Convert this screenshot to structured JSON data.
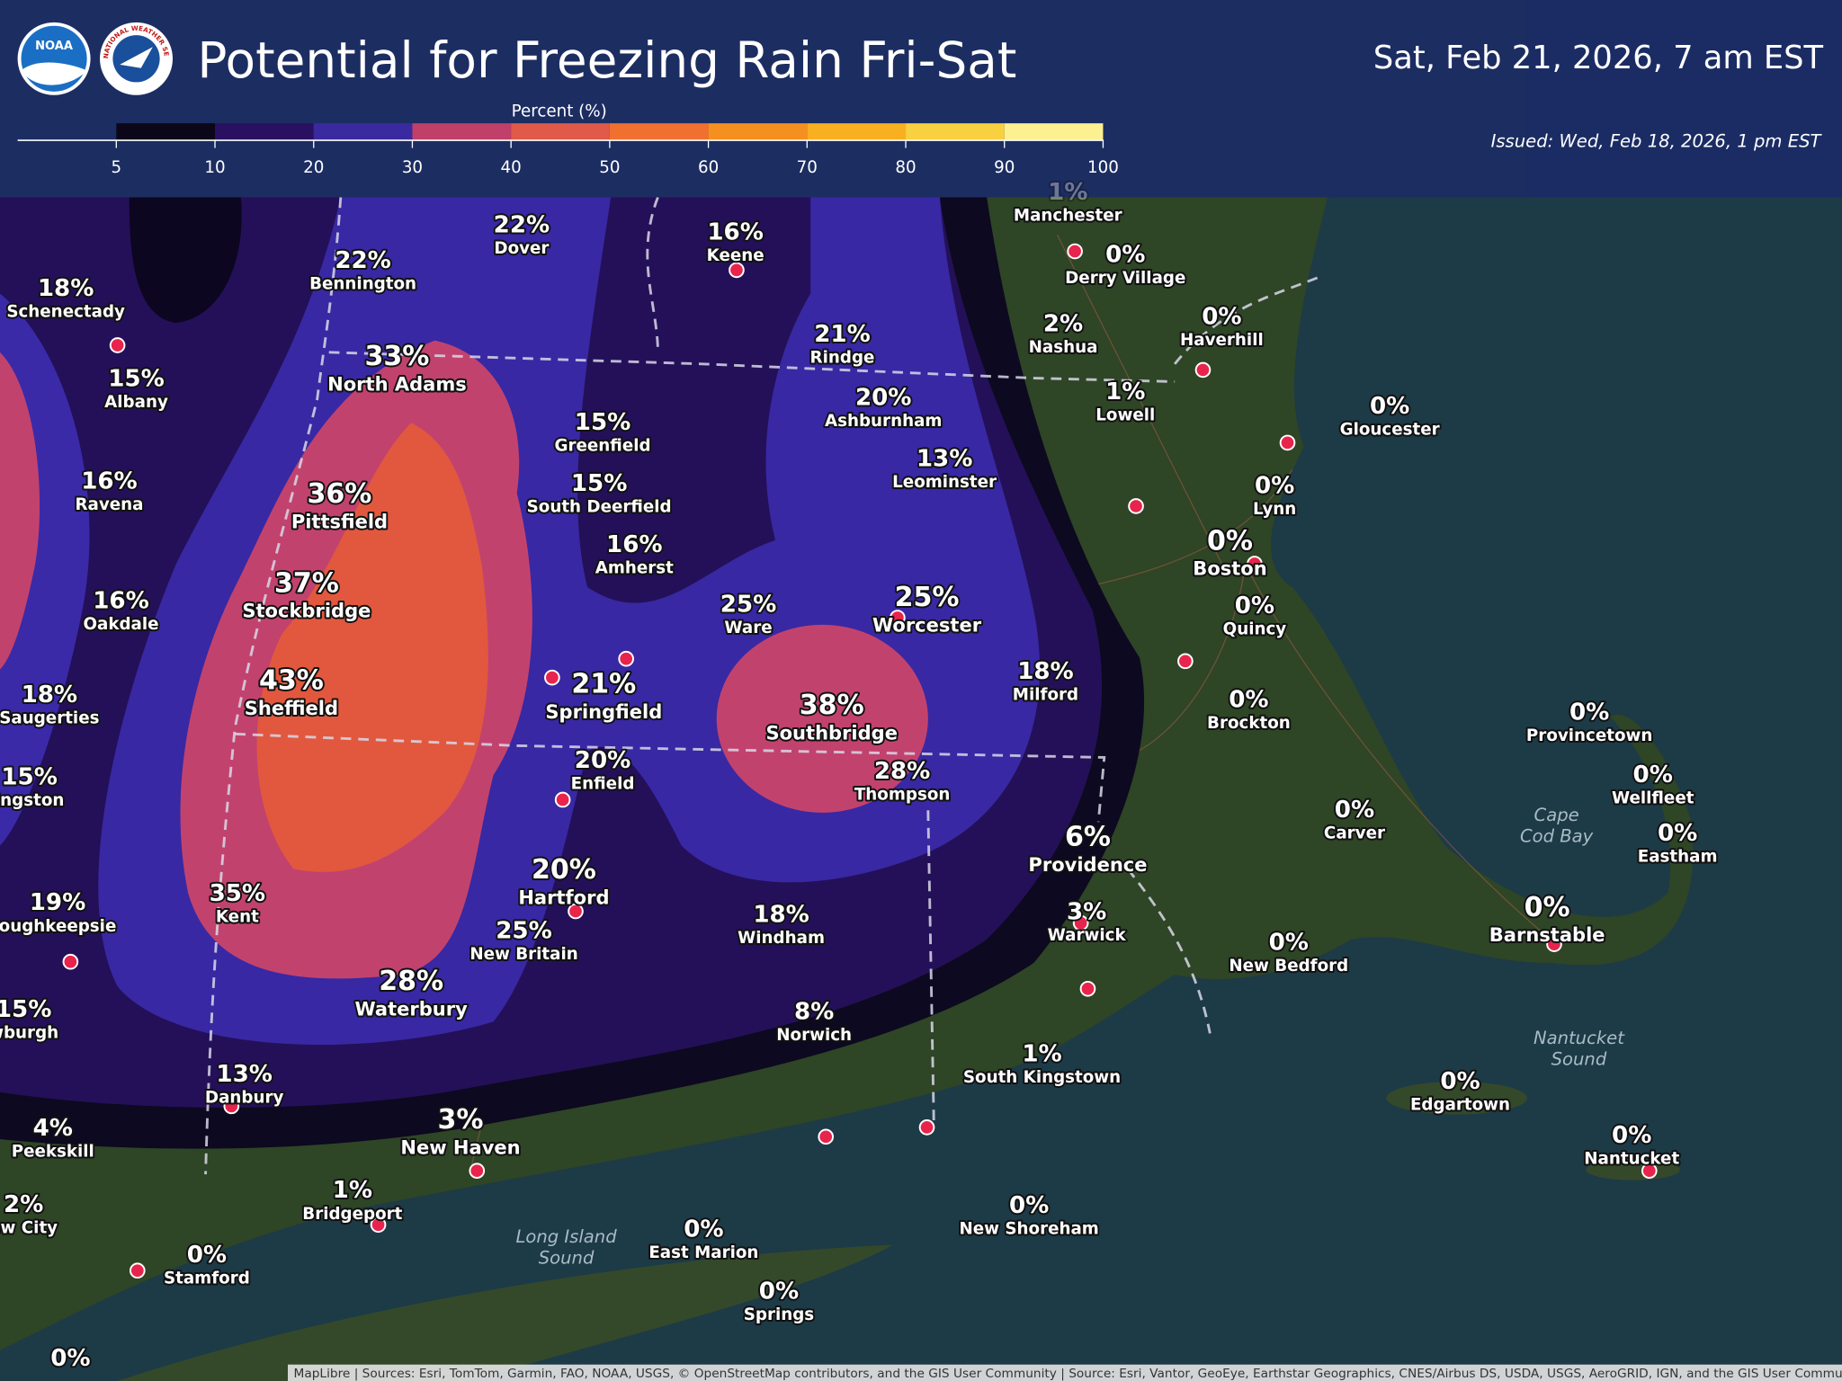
{
  "header": {
    "title": "Potential for Freezing Rain Fri-Sat",
    "valid_time": "Sat, Feb 21, 2026, 7 am EST",
    "issued": "Issued: Wed, Feb 18, 2026, 1 pm EST"
  },
  "logos": {
    "noaa": "NOAA",
    "nws": "NATIONAL WEATHER SERVICE"
  },
  "legend": {
    "label": "Percent (%)",
    "ticks": [
      5,
      10,
      20,
      30,
      40,
      50,
      60,
      70,
      80,
      90,
      100
    ],
    "colors": [
      "#0b0618",
      "#2a1060",
      "#3a2aa0",
      "#c0406a",
      "#e05a4a",
      "#f07030",
      "#f59020",
      "#f8b020",
      "#f8d040",
      "#fcf090"
    ]
  },
  "cities": [
    {
      "name": "Dover",
      "percent": "22%"
    },
    {
      "name": "Bennington",
      "percent": "22%"
    },
    {
      "name": "Keene",
      "percent": "16%"
    },
    {
      "name": "Schenectady",
      "percent": "18%"
    },
    {
      "name": "North Adams",
      "percent": "33%"
    },
    {
      "name": "Rindge",
      "percent": "21%"
    },
    {
      "name": "Albany",
      "percent": "15%"
    },
    {
      "name": "Greenfield",
      "percent": "15%"
    },
    {
      "name": "Ashburnham",
      "percent": "20%"
    },
    {
      "name": "Leominster",
      "percent": "13%"
    },
    {
      "name": "Ravena",
      "percent": "16%"
    },
    {
      "name": "Pittsfield",
      "percent": "36%"
    },
    {
      "name": "South Deerfield",
      "percent": "15%"
    },
    {
      "name": "Amherst",
      "percent": "16%"
    },
    {
      "name": "Stockbridge",
      "percent": "37%"
    },
    {
      "name": "Oakdale",
      "percent": "16%"
    },
    {
      "name": "Ware",
      "percent": "25%"
    },
    {
      "name": "Worcester",
      "percent": "25%"
    },
    {
      "name": "Sheffield",
      "percent": "43%"
    },
    {
      "name": "Springfield",
      "percent": "21%"
    },
    {
      "name": "Saugerties",
      "percent": "18%"
    },
    {
      "name": "Milford",
      "percent": "18%"
    },
    {
      "name": "Southbridge",
      "percent": "38%"
    },
    {
      "name": "Enfield",
      "percent": "20%"
    },
    {
      "name": "Thompson",
      "percent": "28%"
    },
    {
      "name": "ingston",
      "percent": "15%"
    },
    {
      "name": "Hartford",
      "percent": "20%"
    },
    {
      "name": "Kent",
      "percent": "35%"
    },
    {
      "name": "oughkeepsie",
      "percent": "19%"
    },
    {
      "name": "New Britain",
      "percent": "25%"
    },
    {
      "name": "Windham",
      "percent": "18%"
    },
    {
      "name": "Waterbury",
      "percent": "28%"
    },
    {
      "name": "wburgh",
      "percent": "15%"
    },
    {
      "name": "Norwich",
      "percent": "8%"
    },
    {
      "name": "Danbury",
      "percent": "13%"
    },
    {
      "name": "Peekskill",
      "percent": "4%"
    },
    {
      "name": "New Haven",
      "percent": "3%"
    },
    {
      "name": "South Kingstown",
      "percent": "1%"
    },
    {
      "name": "ew City",
      "percent": "2%"
    },
    {
      "name": "Bridgeport",
      "percent": "1%"
    },
    {
      "name": "Stamford",
      "percent": "0%"
    },
    {
      "name": "East Marion",
      "percent": "0%"
    },
    {
      "name": "New Shoreham",
      "percent": "0%"
    },
    {
      "name": "Springs",
      "percent": "0%"
    },
    {
      "percent": "0%"
    },
    {
      "name": "Manchester",
      "percent": "1%"
    },
    {
      "name": "Derry Village",
      "percent": "0%"
    },
    {
      "name": "Nashua",
      "percent": "2%"
    },
    {
      "name": "Haverhill",
      "percent": "0%"
    },
    {
      "name": "Lowell",
      "percent": "1%"
    },
    {
      "name": "Gloucester",
      "percent": "0%"
    },
    {
      "name": "Lynn",
      "percent": "0%"
    },
    {
      "name": "Boston",
      "percent": "0%"
    },
    {
      "name": "Quincy",
      "percent": "0%"
    },
    {
      "name": "Brockton",
      "percent": "0%"
    },
    {
      "name": "Provincetown",
      "percent": "0%"
    },
    {
      "name": "Wellfleet",
      "percent": "0%"
    },
    {
      "name": "Carver",
      "percent": "0%"
    },
    {
      "name": "Eastham",
      "percent": "0%"
    },
    {
      "name": "Providence",
      "percent": "6%"
    },
    {
      "name": "Warwick",
      "percent": "3%"
    },
    {
      "name": "Barnstable",
      "percent": "0%"
    },
    {
      "name": "New Bedford",
      "percent": "0%"
    },
    {
      "name": "Edgartown",
      "percent": "0%"
    },
    {
      "name": "Nantucket",
      "percent": "0%"
    }
  ],
  "water_labels": [
    [
      "Long Island",
      "Sound"
    ],
    [
      "Cape",
      "Cod Bay"
    ],
    [
      "Nantucket",
      "Sound"
    ]
  ],
  "attribution": "MapLibre | Sources: Esri, TomTom, Garmin, FAO, NOAA, USGS, © OpenStreetMap contributors, and the GIS User Community | Source: Esri, Vantor, GeoEye, Earthstar Geographics, CNES/Airbus DS, USDA, USGS, AeroGRID, IGN, and the GIS User Community"
}
